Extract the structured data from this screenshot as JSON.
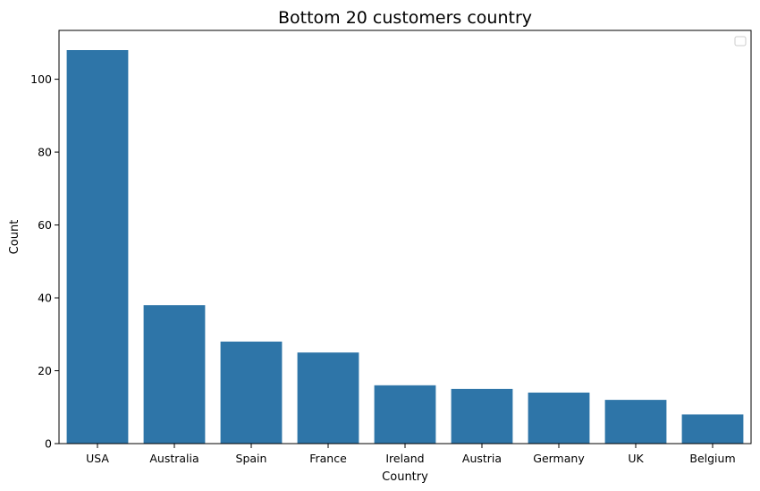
{
  "chart_data": {
    "type": "bar",
    "title": "Bottom 20 customers country",
    "xlabel": "Country",
    "ylabel": "Count",
    "categories": [
      "USA",
      "Australia",
      "Spain",
      "France",
      "Ireland",
      "Austria",
      "Germany",
      "UK",
      "Belgium"
    ],
    "values": [
      108,
      38,
      28,
      25,
      16,
      15,
      14,
      12,
      8
    ],
    "ylim": [
      0,
      113.4
    ],
    "yticks": [
      0,
      20,
      40,
      60,
      80,
      100
    ],
    "grid": false,
    "legend": "top-right",
    "bar_color": "#2e75a8"
  }
}
